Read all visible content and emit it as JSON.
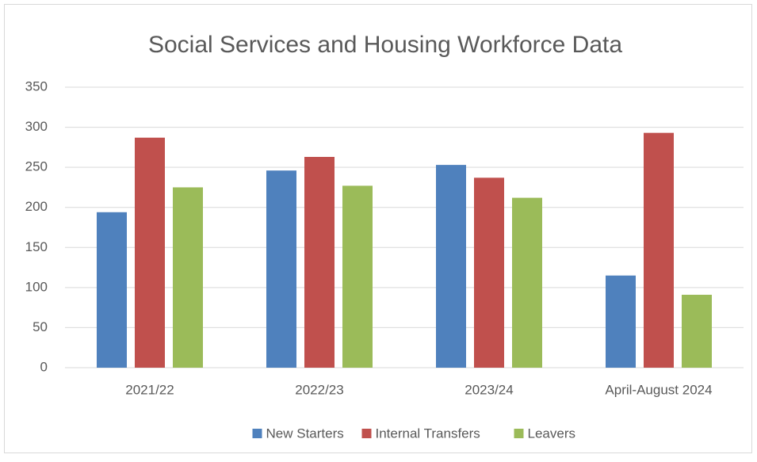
{
  "chart_data": {
    "type": "bar",
    "title": "Social Services and Housing Workforce Data",
    "categories": [
      "2021/22",
      "2022/23",
      "2023/24",
      "April-August 2024"
    ],
    "series": [
      {
        "name": "New Starters",
        "color": "#4f81bd",
        "values": [
          194,
          246,
          253,
          115
        ]
      },
      {
        "name": "Internal Transfers",
        "color": "#c0504d",
        "values": [
          287,
          263,
          237,
          293
        ]
      },
      {
        "name": "Leavers",
        "color": "#9bbb59",
        "values": [
          225,
          227,
          212,
          91
        ]
      }
    ],
    "ylim": [
      0,
      350
    ],
    "yticks": [
      0,
      50,
      100,
      150,
      200,
      250,
      300,
      350
    ],
    "grid": true,
    "legend": "bottom"
  }
}
